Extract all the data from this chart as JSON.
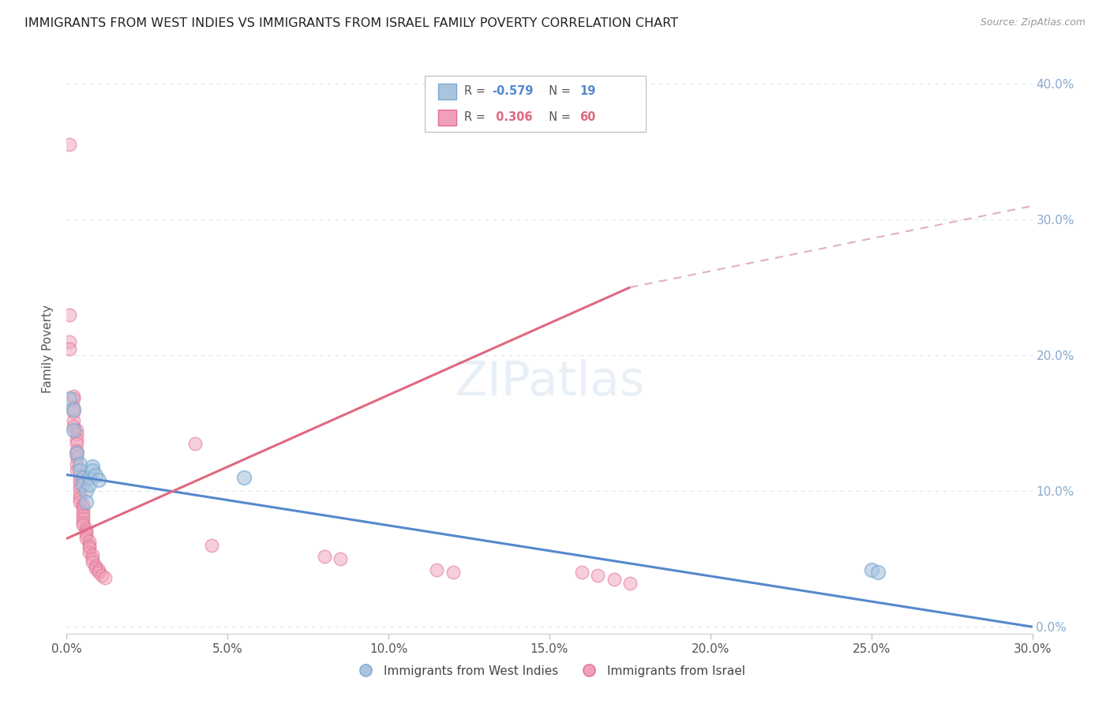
{
  "title": "IMMIGRANTS FROM WEST INDIES VS IMMIGRANTS FROM ISRAEL FAMILY POVERTY CORRELATION CHART",
  "source": "Source: ZipAtlas.com",
  "ylabel": "Family Poverty",
  "xlim": [
    0.0,
    0.3
  ],
  "ylim": [
    -0.005,
    0.415
  ],
  "yticks": [
    0.0,
    0.1,
    0.2,
    0.3,
    0.4
  ],
  "xticks": [
    0.0,
    0.05,
    0.1,
    0.15,
    0.2,
    0.25,
    0.3
  ],
  "west_indies_color": "#aac4e0",
  "west_indies_edge": "#7aaad0",
  "israel_color": "#f0a0b8",
  "israel_edge": "#e07090",
  "west_indies_line_color": "#5588cc",
  "israel_line_color": "#e06880",
  "israel_line_dash_color": "#e0b0c0",
  "background_color": "#ffffff",
  "grid_color": "#dde8f0",
  "right_axis_color": "#88aacc",
  "r_west_indies": "-0.579",
  "n_west_indies": "19",
  "r_israel": "0.306",
  "n_israel": "60",
  "west_indies_scatter": [
    [
      0.001,
      0.168
    ],
    [
      0.002,
      0.16
    ],
    [
      0.002,
      0.145
    ],
    [
      0.003,
      0.128
    ],
    [
      0.004,
      0.12
    ],
    [
      0.004,
      0.115
    ],
    [
      0.005,
      0.11
    ],
    [
      0.005,
      0.105
    ],
    [
      0.006,
      0.1
    ],
    [
      0.006,
      0.092
    ],
    [
      0.007,
      0.11
    ],
    [
      0.007,
      0.105
    ],
    [
      0.008,
      0.118
    ],
    [
      0.008,
      0.115
    ],
    [
      0.009,
      0.112
    ],
    [
      0.01,
      0.108
    ],
    [
      0.055,
      0.11
    ],
    [
      0.25,
      0.042
    ],
    [
      0.252,
      0.04
    ]
  ],
  "israel_scatter": [
    [
      0.001,
      0.355
    ],
    [
      0.001,
      0.23
    ],
    [
      0.001,
      0.21
    ],
    [
      0.001,
      0.205
    ],
    [
      0.002,
      0.17
    ],
    [
      0.002,
      0.168
    ],
    [
      0.002,
      0.162
    ],
    [
      0.002,
      0.158
    ],
    [
      0.002,
      0.152
    ],
    [
      0.002,
      0.148
    ],
    [
      0.003,
      0.145
    ],
    [
      0.003,
      0.142
    ],
    [
      0.003,
      0.138
    ],
    [
      0.003,
      0.135
    ],
    [
      0.003,
      0.13
    ],
    [
      0.003,
      0.128
    ],
    [
      0.003,
      0.125
    ],
    [
      0.003,
      0.12
    ],
    [
      0.003,
      0.115
    ],
    [
      0.004,
      0.112
    ],
    [
      0.004,
      0.108
    ],
    [
      0.004,
      0.105
    ],
    [
      0.004,
      0.102
    ],
    [
      0.004,
      0.098
    ],
    [
      0.004,
      0.095
    ],
    [
      0.004,
      0.092
    ],
    [
      0.005,
      0.09
    ],
    [
      0.005,
      0.088
    ],
    [
      0.005,
      0.085
    ],
    [
      0.005,
      0.082
    ],
    [
      0.005,
      0.08
    ],
    [
      0.005,
      0.077
    ],
    [
      0.005,
      0.075
    ],
    [
      0.006,
      0.072
    ],
    [
      0.006,
      0.07
    ],
    [
      0.006,
      0.068
    ],
    [
      0.006,
      0.065
    ],
    [
      0.007,
      0.063
    ],
    [
      0.007,
      0.06
    ],
    [
      0.007,
      0.058
    ],
    [
      0.007,
      0.055
    ],
    [
      0.008,
      0.053
    ],
    [
      0.008,
      0.05
    ],
    [
      0.008,
      0.048
    ],
    [
      0.009,
      0.045
    ],
    [
      0.009,
      0.043
    ],
    [
      0.01,
      0.042
    ],
    [
      0.01,
      0.04
    ],
    [
      0.011,
      0.038
    ],
    [
      0.012,
      0.036
    ],
    [
      0.04,
      0.135
    ],
    [
      0.045,
      0.06
    ],
    [
      0.08,
      0.052
    ],
    [
      0.085,
      0.05
    ],
    [
      0.115,
      0.042
    ],
    [
      0.12,
      0.04
    ],
    [
      0.16,
      0.04
    ],
    [
      0.165,
      0.038
    ],
    [
      0.17,
      0.035
    ],
    [
      0.175,
      0.032
    ]
  ]
}
